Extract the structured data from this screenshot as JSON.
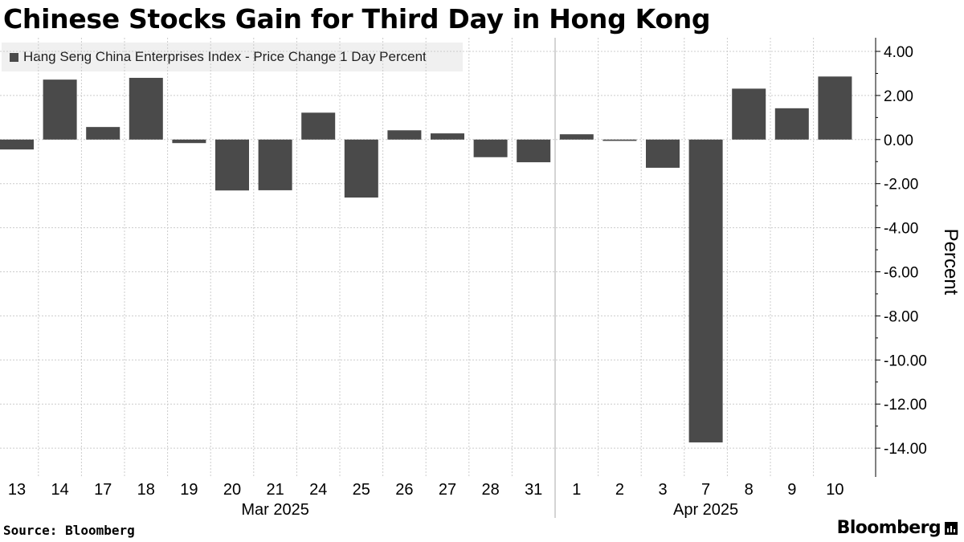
{
  "title": "Chinese Stocks Gain for Third Day in Hong Kong",
  "footer": {
    "source": "Source: Bloomberg",
    "brand": "Bloomberg"
  },
  "colors": {
    "bar": "#4a4a4a",
    "grid": "#cccccc",
    "legend_bg": "#f0f0f0"
  },
  "chart_data": {
    "type": "bar",
    "title": "Chinese Stocks Gain for Third Day in Hong Kong",
    "legend": [
      "Hang Seng China Enterprises Index - Price Change 1 Day Percent"
    ],
    "ylabel": "Percent",
    "xlabel": "",
    "ylim": [
      -15.3,
      4.4
    ],
    "yticks": [
      4,
      2,
      0,
      -2,
      -4,
      -6,
      -8,
      -10,
      -12,
      -14
    ],
    "ytick_labels": [
      "4.00",
      "2.00",
      "0.00",
      "-2.00",
      "-4.00",
      "-6.00",
      "-8.00",
      "-10.00",
      "-12.00",
      "-14.00"
    ],
    "categories": [
      "13",
      "14",
      "17",
      "18",
      "19",
      "20",
      "21",
      "24",
      "25",
      "26",
      "27",
      "28",
      "31",
      "1",
      "2",
      "3",
      "7",
      "8",
      "9",
      "10"
    ],
    "month_labels": [
      {
        "label": "Mar 2025",
        "category_index": 6
      },
      {
        "label": "Apr 2025",
        "category_index": 16
      }
    ],
    "month_dividers_after": [
      12
    ],
    "series": [
      {
        "name": "Hang Seng China Enterprises Index - Price Change 1 Day Percent",
        "values": [
          -0.45,
          2.72,
          0.57,
          2.8,
          -0.16,
          -2.31,
          -2.3,
          1.22,
          -2.63,
          0.42,
          0.28,
          -0.8,
          -1.03,
          0.24,
          -0.06,
          -1.28,
          -13.74,
          2.31,
          1.42,
          2.86
        ]
      }
    ],
    "grid": true,
    "y_axis_position": "right",
    "legend_position": "top-left"
  }
}
